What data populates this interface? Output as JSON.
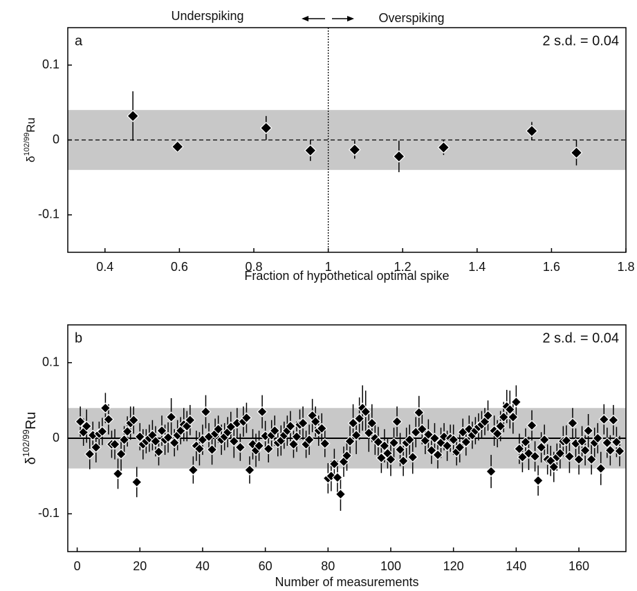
{
  "chart_data": [
    {
      "type": "scatter",
      "panel_label": "a",
      "sd_label": "2 s.d. = 0.04",
      "left_annotation": "Underspiking",
      "right_annotation": "Overspiking",
      "x_label": "Fraction of hypothetical optimal spike",
      "y_label": {
        "symbol": "δ",
        "superscript": "102/99",
        "element": "Ru"
      },
      "xlim": [
        0.3,
        1.8
      ],
      "ylim": [
        -0.15,
        0.15
      ],
      "xticks": [
        0.4,
        0.6,
        0.8,
        1,
        1.2,
        1.4,
        1.6,
        1.8
      ],
      "yticks": [
        -0.1,
        0,
        0.1
      ],
      "band": [
        -0.04,
        0.04
      ],
      "band_color": "#c8c8c8",
      "reference_line": 0,
      "reference_style": "dashed",
      "vline": 1,
      "series": [
        {
          "color": "#000000",
          "x": [
            0.475,
            0.595,
            0.833,
            0.952,
            1.071,
            1.19,
            1.31,
            1.547,
            1.667
          ],
          "values": [
            0.032,
            -0.009,
            0.016,
            -0.014,
            -0.013,
            -0.022,
            -0.01,
            0.012,
            -0.017
          ],
          "errors": [
            0.033,
            0.008,
            0.016,
            0.014,
            0.012,
            0.021,
            0.01,
            0.012,
            0.017
          ]
        }
      ]
    },
    {
      "type": "scatter",
      "panel_label": "b",
      "sd_label": "2 s.d. = 0.04",
      "x_label": "Number of measurements",
      "y_label": {
        "symbol": "δ",
        "superscript": "102/99",
        "element": "Ru"
      },
      "xlim": [
        -3,
        175
      ],
      "ylim": [
        -0.15,
        0.15
      ],
      "xticks": [
        0,
        20,
        40,
        60,
        80,
        100,
        120,
        140,
        160
      ],
      "yticks": [
        -0.1,
        0,
        0.1
      ],
      "band": [
        -0.04,
        0.04
      ],
      "band_color": "#c8c8c8",
      "reference_line": 0,
      "reference_style": "solid",
      "series": [
        {
          "color": "#000000",
          "x": [
            1,
            2,
            3,
            4,
            5,
            6,
            7,
            8,
            9,
            10,
            11,
            12,
            13,
            14,
            15,
            16,
            17,
            18,
            19,
            20,
            21,
            22,
            23,
            24,
            25,
            26,
            27,
            28,
            29,
            30,
            31,
            32,
            33,
            34,
            35,
            36,
            37,
            38,
            39,
            40,
            41,
            42,
            43,
            44,
            45,
            46,
            47,
            48,
            49,
            50,
            51,
            52,
            53,
            54,
            55,
            56,
            57,
            58,
            59,
            60,
            61,
            62,
            63,
            64,
            65,
            66,
            67,
            68,
            69,
            70,
            71,
            72,
            73,
            74,
            75,
            76,
            77,
            78,
            79,
            80,
            81,
            82,
            83,
            84,
            85,
            86,
            87,
            88,
            89,
            90,
            91,
            92,
            93,
            94,
            95,
            96,
            97,
            98,
            99,
            100,
            101,
            102,
            103,
            104,
            105,
            106,
            107,
            108,
            109,
            110,
            111,
            112,
            113,
            114,
            115,
            116,
            117,
            118,
            119,
            120,
            121,
            122,
            123,
            124,
            125,
            126,
            127,
            128,
            129,
            130,
            131,
            132,
            133,
            134,
            135,
            136,
            137,
            138,
            139,
            140,
            141,
            142,
            143,
            144,
            145,
            146,
            147,
            148,
            149,
            150,
            151,
            152,
            153,
            154,
            155,
            156,
            157,
            158,
            159,
            160,
            161,
            162,
            163,
            164,
            165,
            166,
            167,
            168,
            169,
            170,
            171,
            172,
            173
          ],
          "values": [
            0.022,
            0.008,
            0.016,
            -0.021,
            0.004,
            -0.012,
            0.006,
            0.009,
            0.04,
            0.025,
            -0.008,
            -0.008,
            -0.047,
            -0.021,
            -0.002,
            0.009,
            0.02,
            0.024,
            -0.058,
            0.002,
            -0.008,
            -0.004,
            0,
            0.004,
            -0.004,
            -0.018,
            0.01,
            -0.002,
            0.001,
            0.028,
            -0.006,
            0.004,
            0.01,
            0.018,
            0.016,
            0.024,
            -0.042,
            -0.01,
            -0.014,
            -0.002,
            0.035,
            0.002,
            -0.015,
            0.006,
            0.012,
            -0.002,
            0.002,
            0.008,
            0.015,
            -0.004,
            0.02,
            -0.012,
            0.022,
            0.027,
            -0.042,
            -0.008,
            -0.016,
            -0.01,
            0.035,
            0.003,
            -0.014,
            0.004,
            0.01,
            -0.006,
            -0.003,
            0.004,
            0.01,
            0.016,
            -0.008,
            0.002,
            0.018,
            0.02,
            -0.008,
            -0.002,
            0.03,
            0.022,
            0.01,
            0.013,
            -0.007,
            -0.053,
            -0.05,
            -0.034,
            -0.052,
            -0.074,
            -0.031,
            -0.023,
            -0.004,
            0.02,
            0.004,
            0.026,
            0.04,
            0.035,
            0.007,
            0.02,
            0,
            -0.005,
            -0.026,
            -0.01,
            -0.02,
            -0.028,
            -0.006,
            0.022,
            -0.015,
            -0.03,
            -0.006,
            -0.002,
            -0.025,
            0.008,
            0.034,
            0.012,
            -0.003,
            0.005,
            -0.016,
            0,
            -0.022,
            -0.006,
            0.002,
            -0.01,
            0,
            -0.002,
            -0.018,
            -0.012,
            0.008,
            -0.005,
            0.012,
            0.004,
            0.01,
            0.015,
            0.018,
            0.022,
            0.03,
            -0.044,
            0.01,
            0.006,
            0.016,
            0.028,
            0.042,
            0.038,
            0.028,
            0.048,
            -0.014,
            -0.025,
            -0.005,
            -0.02,
            0.017,
            -0.024,
            -0.056,
            -0.012,
            -0.002,
            -0.028,
            -0.03,
            -0.038,
            -0.025,
            -0.02,
            -0.004,
            -0.003,
            -0.024,
            0.02,
            -0.007,
            -0.028,
            -0.004,
            -0.016,
            0.01,
            -0.028,
            -0.006,
            0,
            -0.04,
            0.025,
            -0.006,
            -0.016,
            0.024,
            -0.005,
            -0.017
          ],
          "errors": [
            0.02,
            0.018,
            0.022,
            0.02,
            0.018,
            0.02,
            0.016,
            0.018,
            0.02,
            0.02,
            0.018,
            0.02,
            0.02,
            0.022,
            0.018,
            0.02,
            0.022,
            0.018,
            0.02,
            0.018,
            0.02,
            0.016,
            0.018,
            0.02,
            0.02,
            0.018,
            0.02,
            0.02,
            0.02,
            0.025,
            0.018,
            0.02,
            0.018,
            0.022,
            0.02,
            0.02,
            0.018,
            0.02,
            0.022,
            0.02,
            0.022,
            0.018,
            0.02,
            0.02,
            0.018,
            0.02,
            0.018,
            0.02,
            0.02,
            0.022,
            0.02,
            0.018,
            0.02,
            0.02,
            0.018,
            0.02,
            0.022,
            0.02,
            0.022,
            0.02,
            0.018,
            0.02,
            0.02,
            0.018,
            0.02,
            0.018,
            0.02,
            0.02,
            0.018,
            0.02,
            0.02,
            0.022,
            0.018,
            0.02,
            0.022,
            0.02,
            0.02,
            0.02,
            0.018,
            0.02,
            0.02,
            0.02,
            0.022,
            0.022,
            0.02,
            0.02,
            0.02,
            0.025,
            0.025,
            0.028,
            0.03,
            0.028,
            0.025,
            0.025,
            0.022,
            0.02,
            0.02,
            0.022,
            0.02,
            0.022,
            0.02,
            0.02,
            0.022,
            0.02,
            0.02,
            0.02,
            0.022,
            0.02,
            0.022,
            0.02,
            0.018,
            0.02,
            0.018,
            0.02,
            0.018,
            0.02,
            0.018,
            0.02,
            0.018,
            0.02,
            0.018,
            0.02,
            0.018,
            0.018,
            0.018,
            0.018,
            0.018,
            0.018,
            0.018,
            0.018,
            0.02,
            0.022,
            0.02,
            0.018,
            0.02,
            0.02,
            0.022,
            0.025,
            0.022,
            0.022,
            0.02,
            0.02,
            0.018,
            0.022,
            0.02,
            0.02,
            0.02,
            0.02,
            0.02,
            0.02,
            0.02,
            0.02,
            0.018,
            0.02,
            0.02,
            0.02,
            0.022,
            0.02,
            0.02,
            0.02,
            0.02,
            0.02,
            0.022,
            0.02,
            0.02,
            0.02,
            0.022,
            0.02,
            0.02,
            0.02,
            0.02,
            0.02,
            0.02
          ]
        }
      ]
    }
  ]
}
